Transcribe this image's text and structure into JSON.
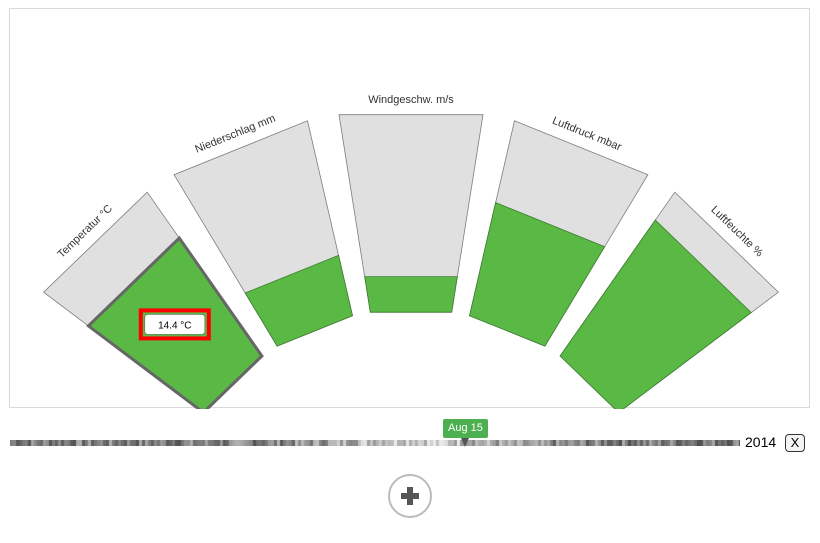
{
  "chart_data": {
    "type": "radial-bar",
    "categories": [
      "Temperatur °C",
      "Niederschlag mm",
      "Windgeschw. m/s",
      "Luftdruck mbar",
      "Luftfeuchte %"
    ],
    "values_fraction": [
      0.72,
      0.31,
      0.18,
      0.58,
      0.83
    ],
    "highlighted_category": "Temperatur °C",
    "tooltip": "14.4 °C",
    "colors": {
      "fill": "#5ab845",
      "track": "#e0e0e0",
      "highlight": "#ff0000"
    }
  },
  "timeline": {
    "marker_label": "Aug 15",
    "marker_position": 0.62,
    "year": "2014",
    "close_label": "X"
  },
  "controls": {
    "add_icon": "plus-icon"
  }
}
